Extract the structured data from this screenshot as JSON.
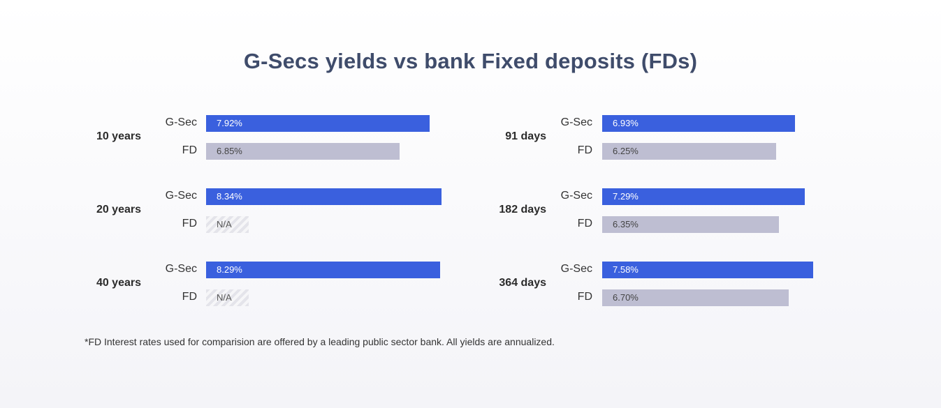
{
  "title": "G-Secs yields vs bank Fixed deposits (FDs)",
  "footnote": "*FD Interest rates used for comparision are offered by a leading public sector bank. All yields are annualized.",
  "colors": {
    "gsec": "#3a60de",
    "fd": "#bebed2",
    "title": "#3f4c6b"
  },
  "chart_data": [
    {
      "type": "bar",
      "orientation": "horizontal",
      "categories": [
        "10 years",
        "20 years",
        "40 years"
      ],
      "series": [
        {
          "name": "G-Sec",
          "values": [
            7.92,
            8.34,
            8.29
          ],
          "labels": [
            "7.92%",
            "8.34%",
            "8.29%"
          ]
        },
        {
          "name": "FD",
          "values": [
            6.85,
            null,
            null
          ],
          "labels": [
            "6.85%",
            "N/A",
            "N/A"
          ]
        }
      ]
    },
    {
      "type": "bar",
      "orientation": "horizontal",
      "categories": [
        "91 days",
        "182 days",
        "364 days"
      ],
      "series": [
        {
          "name": "G-Sec",
          "values": [
            6.93,
            7.29,
            7.58
          ],
          "labels": [
            "6.93%",
            "7.29%",
            "7.58%"
          ]
        },
        {
          "name": "FD",
          "values": [
            6.25,
            6.35,
            6.7
          ],
          "labels": [
            "6.25%",
            "6.35%",
            "6.70%"
          ]
        }
      ]
    }
  ]
}
